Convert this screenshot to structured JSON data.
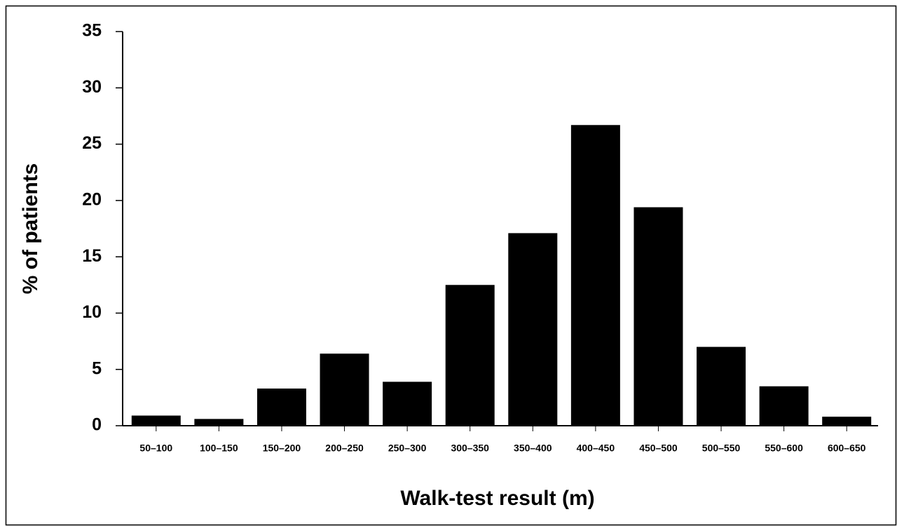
{
  "chart_data": {
    "type": "bar",
    "x_label": "Walk-test result (m)",
    "y_label": "% of patients",
    "categories": [
      "50–100",
      "100–150",
      "150–200",
      "200–250",
      "250–300",
      "300–350",
      "350–400",
      "400–450",
      "450–500",
      "500–550",
      "550–600",
      "600–650"
    ],
    "values": [
      0.9,
      0.6,
      3.3,
      6.4,
      3.9,
      12.5,
      17.1,
      26.7,
      19.4,
      7.0,
      3.5,
      0.8
    ],
    "color": "#000000",
    "ylim": [
      0,
      35
    ],
    "yticks": [
      0,
      5,
      10,
      15,
      20,
      25,
      30,
      35
    ],
    "grid": false
  }
}
